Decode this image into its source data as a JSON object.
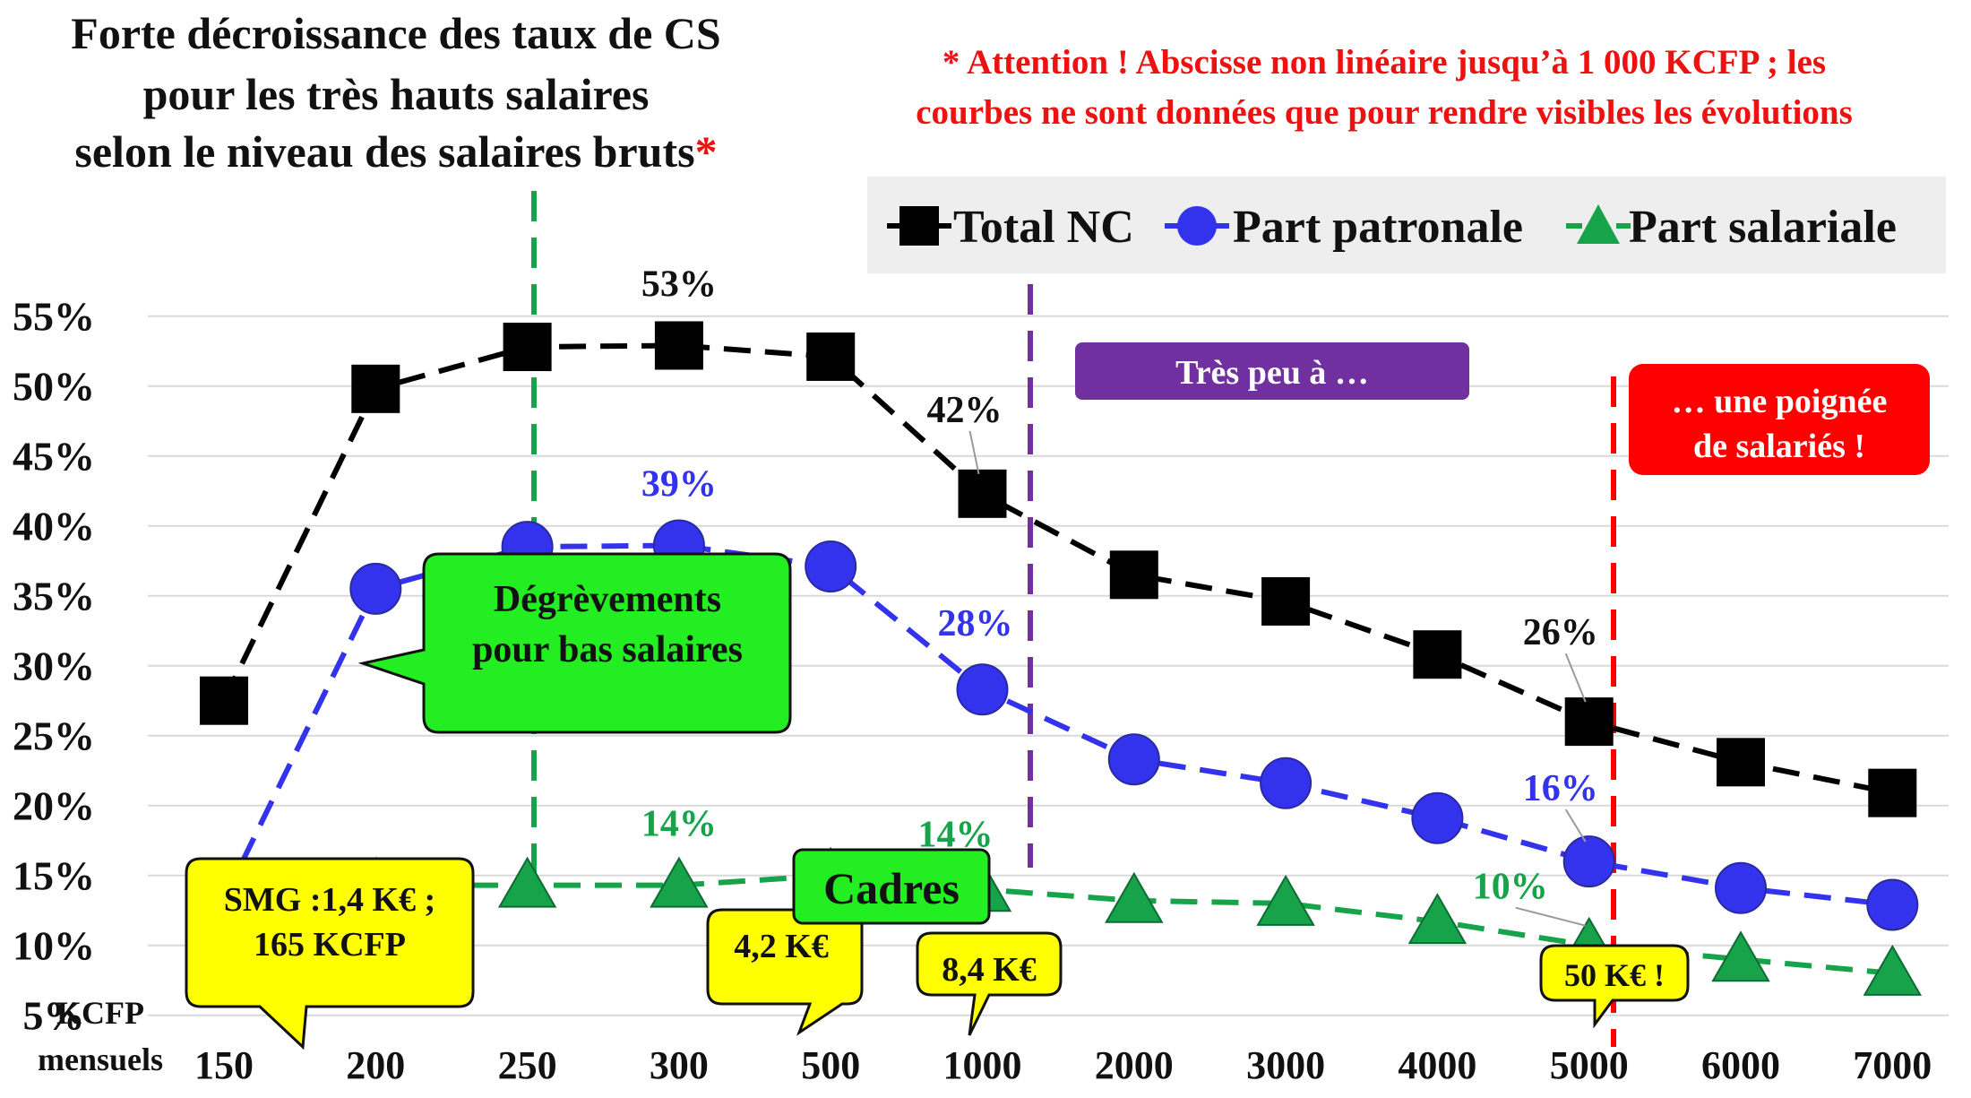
{
  "title": {
    "line1": "Forte décroissance des taux de CS",
    "line2": "pour les très hauts salaires",
    "line3": "selon le niveau des salaires bruts",
    "star": "*"
  },
  "warning": {
    "line1": "* Attention ! Abscisse non linéaire jusqu’à 1 000 KCFP ;   les",
    "line2": "courbes ne sont données que pour rendre visibles les évolutions"
  },
  "colors": {
    "total": "#000000",
    "patronale": "#3333ee",
    "salariale": "#16a34a",
    "green_box": "#22ee22",
    "yellow_box": "#ffff00",
    "purple_box": "#7030a0",
    "red_box": "#ff0000"
  },
  "chart_data": {
    "type": "line",
    "categories": [
      "150",
      "200",
      "250",
      "300",
      "500",
      "1000",
      "2000",
      "3000",
      "4000",
      "5000",
      "6000",
      "7000"
    ],
    "xlabel_line1": "KCFP",
    "xlabel_line2": "mensuels",
    "ylim": [
      0,
      58
    ],
    "yticks": [
      5,
      10,
      15,
      20,
      25,
      30,
      35,
      40,
      45,
      50,
      55
    ],
    "ytick_labels": [
      "5%",
      "10%",
      "15%",
      "20%",
      "25%",
      "30%",
      "35%",
      "40%",
      "45%",
      "50%",
      "55%"
    ],
    "legend_position": "top-right",
    "series": [
      {
        "name": "Total NC",
        "marker": "square",
        "values": [
          27.5,
          49.8,
          52.8,
          52.9,
          52.1,
          42.3,
          36.5,
          34.6,
          30.8,
          26.0,
          23.1,
          20.9
        ]
      },
      {
        "name": "Part patronale",
        "marker": "circle",
        "values": [
          13.3,
          35.5,
          38.5,
          38.6,
          37.1,
          28.3,
          23.3,
          21.6,
          19.1,
          16.0,
          14.1,
          12.9
        ]
      },
      {
        "name": "Part salariale",
        "marker": "triangle",
        "values": [
          14.2,
          14.3,
          14.3,
          14.3,
          15.0,
          14.0,
          13.2,
          13.0,
          11.7,
          10.0,
          9.0,
          8.0
        ]
      }
    ],
    "data_labels": [
      {
        "series": 0,
        "index": 3,
        "text": "53%"
      },
      {
        "series": 0,
        "index": 5,
        "text": "42%"
      },
      {
        "series": 0,
        "index": 9,
        "text": "26%"
      },
      {
        "series": 1,
        "index": 3,
        "text": "39%"
      },
      {
        "series": 1,
        "index": 5,
        "text": "28%"
      },
      {
        "series": 1,
        "index": 9,
        "text": "16%"
      },
      {
        "series": 2,
        "index": 3,
        "text": "14%"
      },
      {
        "series": 2,
        "index": 5,
        "text": "14%"
      },
      {
        "series": 2,
        "index": 9,
        "text": "10%"
      }
    ],
    "annotations": {
      "degrevements_line1": "Dégrèvements",
      "degrevements_line2": "pour bas salaires",
      "smg_line1": "SMG :1,4 K€ ;",
      "smg_line2": "165 KCFP",
      "k42": "4,2 K€",
      "cadres": "Cadres",
      "k84": "8,4 K€",
      "tres_peu": "Très peu à …",
      "poignee_line1": "… une poignée",
      "poignee_line2": "de salariés !",
      "k50": "50 K€ !"
    }
  }
}
